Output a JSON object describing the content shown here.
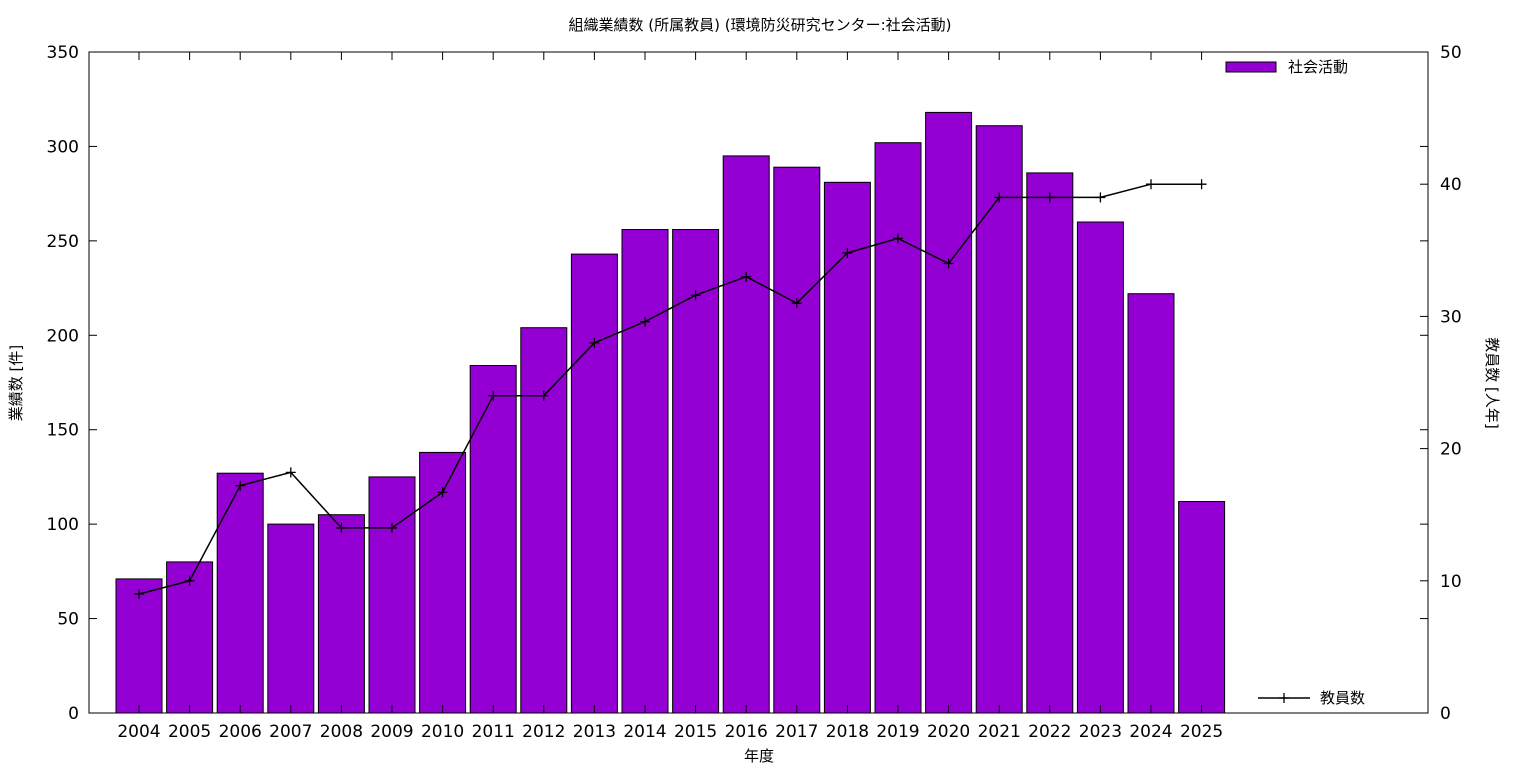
{
  "chart_data": {
    "type": "bar",
    "title": "組織業績数 (所属教員) (環境防災研究センター:社会活動)",
    "xlabel": "年度",
    "ylabel": "業績数 [件]",
    "y2label": "教員数 [人年]",
    "categories": [
      "2004",
      "2005",
      "2006",
      "2007",
      "2008",
      "2009",
      "2010",
      "2011",
      "2012",
      "2013",
      "2014",
      "2015",
      "2016",
      "2017",
      "2018",
      "2019",
      "2020",
      "2021",
      "2022",
      "2023",
      "2024",
      "2025"
    ],
    "series": [
      {
        "name": "社会活動",
        "type": "bar",
        "axis": "left",
        "color": "#9400d3",
        "values": [
          71,
          80,
          127,
          100,
          105,
          125,
          138,
          184,
          204,
          243,
          256,
          256,
          295,
          289,
          281,
          302,
          318,
          311,
          286,
          260,
          222,
          112
        ]
      },
      {
        "name": "教員数",
        "type": "line",
        "axis": "right",
        "color": "#000000",
        "values": [
          9,
          10,
          17.2,
          18.2,
          14,
          14,
          16.7,
          24,
          24,
          28,
          29.6,
          31.6,
          33,
          31,
          34.8,
          35.9,
          34,
          39,
          39,
          39,
          40,
          40
        ]
      }
    ],
    "ylim": [
      0,
      350
    ],
    "yticks": [
      0,
      50,
      100,
      150,
      200,
      250,
      300,
      350
    ],
    "y2lim": [
      0,
      50
    ],
    "y2ticks": [
      0,
      10,
      20,
      30,
      40,
      50
    ],
    "legend": [
      "top-right",
      "bottom-right"
    ],
    "grid": false
  }
}
